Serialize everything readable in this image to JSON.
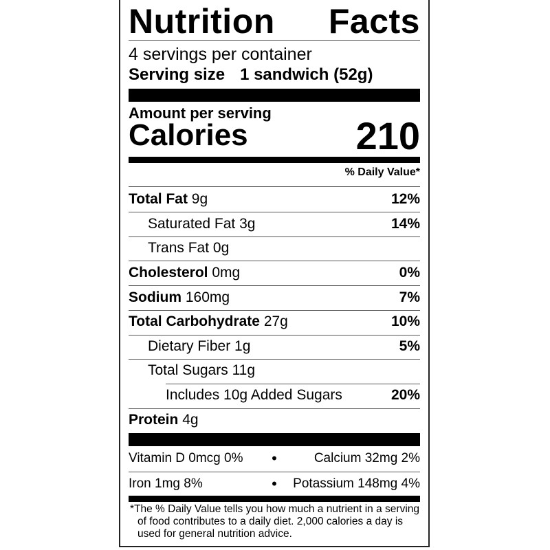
{
  "title": {
    "word1": "Nutrition",
    "word2": "Facts"
  },
  "servings_per_container": "4 servings per container",
  "serving_size": {
    "label": "Serving size",
    "value": "1 sandwich (52g)"
  },
  "amount_per_serving": "Amount per serving",
  "calories": {
    "label": "Calories",
    "value": "210"
  },
  "daily_value_header": "% Daily Value*",
  "nutrients": [
    {
      "name": "Total Fat",
      "amount": "9g",
      "dv": "12%"
    },
    {
      "name": "Saturated Fat 3g",
      "amount": "",
      "dv": "14%"
    },
    {
      "name": "Trans Fat 0g",
      "amount": "",
      "dv": ""
    },
    {
      "name": "Cholesterol",
      "amount": "0mg",
      "dv": "0%"
    },
    {
      "name": "Sodium",
      "amount": "160mg",
      "dv": "7%"
    },
    {
      "name": "Total Carbohydrate",
      "amount": "27g",
      "dv": "10%"
    },
    {
      "name": "Dietary Fiber 1g",
      "amount": "",
      "dv": "5%"
    },
    {
      "name": "Total Sugars 11g",
      "amount": "",
      "dv": ""
    },
    {
      "name": "Includes 10g Added Sugars",
      "amount": "",
      "dv": "20%"
    },
    {
      "name": "Protein",
      "amount": "4g",
      "dv": ""
    }
  ],
  "micronutrients": [
    {
      "left": "Vitamin D 0mcg 0%",
      "right": "Calcium 32mg 2%"
    },
    {
      "left": "Iron 1mg 8%",
      "right": "Potassium 148mg 4%"
    }
  ],
  "bullet": "•",
  "footnote": "*The % Daily Value tells you how much a nutrient in a serving of food contributes to a daily diet. 2,000 calories a day is used for general nutrition advice."
}
